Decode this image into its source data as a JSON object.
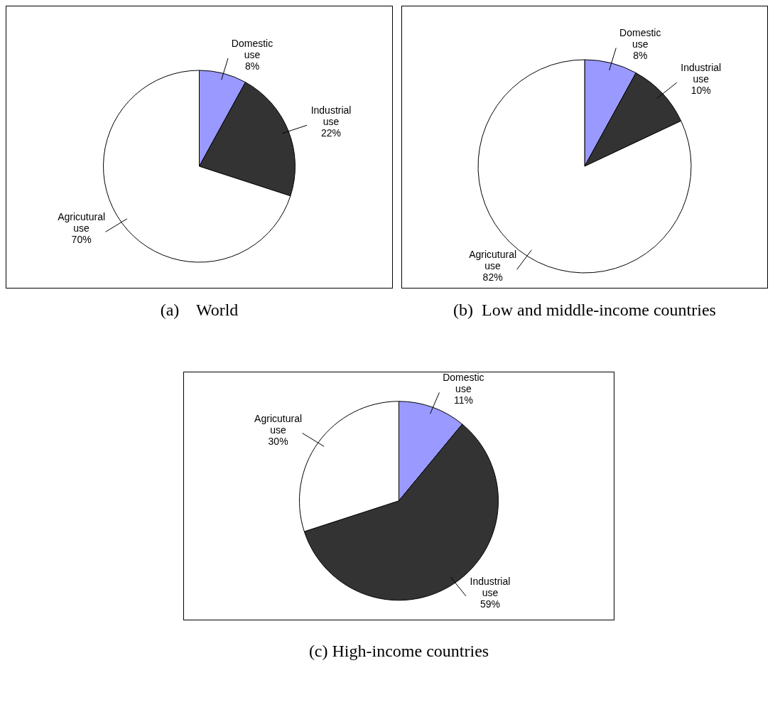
{
  "chart_data": [
    {
      "type": "pie",
      "title": "(a)    World",
      "categories": [
        "Domestic use",
        "Industrial use",
        "Agricutural use"
      ],
      "values": [
        8,
        22,
        70
      ],
      "value_labels": [
        "8%",
        "22%",
        "70%"
      ],
      "colors": [
        "#9999ff",
        "#333333",
        "#ffffff"
      ],
      "legend": false
    },
    {
      "type": "pie",
      "title": "(b)  Low and middle-income countries",
      "categories": [
        "Domestic use",
        "Industrial use",
        "Agricutural use"
      ],
      "values": [
        8,
        10,
        82
      ],
      "value_labels": [
        "8%",
        "10%",
        "82%"
      ],
      "colors": [
        "#9999ff",
        "#333333",
        "#ffffff"
      ],
      "legend": false
    },
    {
      "type": "pie",
      "title": "(c) High-income countries",
      "categories": [
        "Domestic use",
        "Industrial use",
        "Agricutural use"
      ],
      "values": [
        11,
        59,
        30
      ],
      "value_labels": [
        "11%",
        "59%",
        "30%"
      ],
      "colors": [
        "#9999ff",
        "#333333",
        "#ffffff"
      ],
      "legend": false
    }
  ]
}
